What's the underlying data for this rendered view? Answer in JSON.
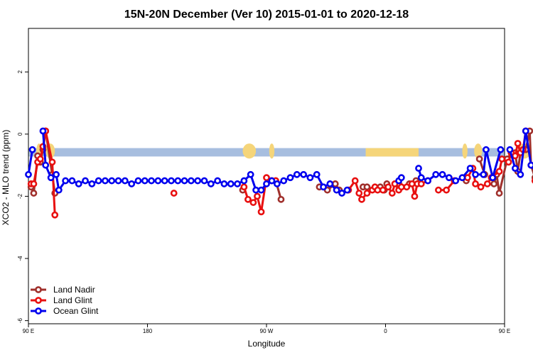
{
  "chart_data": {
    "type": "line",
    "title": "15N-20N December (Ver 10)   2015-01-01 to 2020-12-18",
    "xlabel": "Longitude",
    "ylabel": "XCO2 - MLO trend (ppm)",
    "xlim": [
      90,
      450
    ],
    "ylim": [
      -6.1,
      3.4
    ],
    "x_ticks": [
      {
        "value": 90,
        "label": "90 E"
      },
      {
        "value": 180,
        "label": "180"
      },
      {
        "value": 270,
        "label": "90 W"
      },
      {
        "value": 360,
        "label": "0"
      },
      {
        "value": 450,
        "label": "90 E"
      },
      {
        "value": 540,
        "label": "180"
      }
    ],
    "y_ticks": [
      {
        "value": -6,
        "label": "-6"
      },
      {
        "value": -4,
        "label": "-4"
      },
      {
        "value": -2,
        "label": "-2"
      },
      {
        "value": 0,
        "label": "0"
      },
      {
        "value": 2,
        "label": "2"
      }
    ],
    "background_band": {
      "ymin": -0.72,
      "ymax": -0.45,
      "ocean_color": "#a7bedf",
      "land_color": "#f5d57a"
    },
    "legend_position": "bottom-left",
    "series": [
      {
        "name": "Land Nadir",
        "color": "#a0302c",
        "points": [
          [
            92,
            -1.7
          ],
          [
            94,
            -1.9
          ],
          [
            97,
            -0.7
          ],
          [
            99,
            -0.9
          ],
          [
            101,
            -0.5
          ],
          [
            103,
            0.1
          ],
          [
            108,
            -1.3
          ],
          [
            110,
            -1.9
          ],
          [
            252,
            -1.8
          ],
          [
            277,
            -1.5
          ],
          [
            281,
            -2.1
          ],
          [
            310,
            -1.7
          ],
          [
            316,
            -1.8
          ],
          [
            322,
            -1.6
          ],
          [
            325,
            -1.8
          ],
          [
            343,
            -1.7
          ],
          [
            346,
            -1.7
          ],
          [
            356,
            -1.7
          ],
          [
            359,
            -1.8
          ],
          [
            361,
            -1.6
          ],
          [
            370,
            -1.6
          ],
          [
            372,
            -1.7
          ],
          [
            378,
            -1.6
          ],
          [
            383,
            -1.5
          ],
          [
            421,
            -1.5
          ],
          [
            431,
            -0.8
          ],
          [
            435,
            -1.3
          ],
          [
            442,
            -1.6
          ],
          [
            444,
            -1.3
          ],
          [
            446,
            -1.9
          ],
          [
            452,
            -0.8
          ],
          [
            455,
            -0.6
          ],
          [
            458,
            -0.6
          ],
          [
            460,
            -1.2
          ],
          [
            462,
            -0.6
          ],
          [
            464,
            -0.5
          ],
          [
            466,
            -0.5
          ],
          [
            469,
            0.1
          ],
          [
            470,
            -1.0
          ],
          [
            473,
            -1.4
          ],
          [
            476,
            -1.6
          ],
          [
            477,
            -1.9
          ]
        ]
      },
      {
        "name": "Land Glint",
        "color": "#e81010",
        "points": [
          [
            92,
            -1.6
          ],
          [
            94,
            -1.6
          ],
          [
            97,
            -0.9
          ],
          [
            99,
            -0.8
          ],
          [
            101,
            -0.4
          ],
          [
            103,
            0.1
          ],
          [
            108,
            -0.9
          ],
          [
            110,
            -2.6
          ],
          [
            200,
            -1.9
          ],
          [
            253,
            -1.7
          ],
          [
            256,
            -2.1
          ],
          [
            260,
            -2.2
          ],
          [
            263,
            -2.0
          ],
          [
            266,
            -2.5
          ],
          [
            270,
            -1.4
          ],
          [
            274,
            -1.5
          ],
          [
            277,
            -1.5
          ],
          [
            332,
            -1.8
          ],
          [
            337,
            -1.5
          ],
          [
            340,
            -1.9
          ],
          [
            342,
            -2.1
          ],
          [
            346,
            -1.9
          ],
          [
            350,
            -1.8
          ],
          [
            352,
            -1.7
          ],
          [
            354,
            -1.8
          ],
          [
            358,
            -1.8
          ],
          [
            362,
            -1.7
          ],
          [
            365,
            -1.9
          ],
          [
            367,
            -1.6
          ],
          [
            370,
            -1.8
          ],
          [
            372,
            -1.7
          ],
          [
            376,
            -1.7
          ],
          [
            380,
            -1.6
          ],
          [
            382,
            -2.0
          ],
          [
            384,
            -1.6
          ],
          [
            387,
            -1.6
          ],
          [
            392,
            -1.5
          ],
          [
            400,
            -1.8
          ],
          [
            406,
            -1.8
          ],
          [
            412,
            -1.5
          ],
          [
            422,
            -1.4
          ],
          [
            426,
            -1.1
          ],
          [
            428,
            -1.6
          ],
          [
            432,
            -1.7
          ],
          [
            437,
            -1.6
          ],
          [
            440,
            -1.4
          ],
          [
            446,
            -1.2
          ],
          [
            448,
            -0.8
          ],
          [
            453,
            -0.9
          ],
          [
            455,
            -0.6
          ],
          [
            458,
            -0.7
          ],
          [
            460,
            -0.3
          ],
          [
            462,
            -0.6
          ],
          [
            464,
            -0.5
          ],
          [
            466,
            0.1
          ],
          [
            473,
            -1.5
          ],
          [
            475,
            -2.6
          ]
        ]
      },
      {
        "name": "Ocean Glint",
        "color": "#0000ee",
        "points": [
          [
            90,
            -1.3
          ],
          [
            93,
            -0.5
          ],
          [
            101,
            0.1
          ],
          [
            103,
            -1.0
          ],
          [
            107,
            -1.4
          ],
          [
            111,
            -1.3
          ],
          [
            113,
            -1.8
          ],
          [
            118,
            -1.5
          ],
          [
            123,
            -1.5
          ],
          [
            128,
            -1.6
          ],
          [
            133,
            -1.5
          ],
          [
            138,
            -1.6
          ],
          [
            143,
            -1.5
          ],
          [
            148,
            -1.5
          ],
          [
            153,
            -1.5
          ],
          [
            158,
            -1.5
          ],
          [
            163,
            -1.5
          ],
          [
            168,
            -1.6
          ],
          [
            173,
            -1.5
          ],
          [
            178,
            -1.5
          ],
          [
            183,
            -1.5
          ],
          [
            188,
            -1.5
          ],
          [
            193,
            -1.5
          ],
          [
            198,
            -1.5
          ],
          [
            203,
            -1.5
          ],
          [
            208,
            -1.5
          ],
          [
            213,
            -1.5
          ],
          [
            218,
            -1.5
          ],
          [
            223,
            -1.5
          ],
          [
            228,
            -1.6
          ],
          [
            233,
            -1.5
          ],
          [
            238,
            -1.6
          ],
          [
            243,
            -1.6
          ],
          [
            248,
            -1.6
          ],
          [
            253,
            -1.5
          ],
          [
            258,
            -1.3
          ],
          [
            262,
            -1.8
          ],
          [
            266,
            -1.8
          ],
          [
            270,
            -1.6
          ],
          [
            274,
            -1.5
          ],
          [
            278,
            -1.6
          ],
          [
            283,
            -1.5
          ],
          [
            288,
            -1.4
          ],
          [
            293,
            -1.3
          ],
          [
            298,
            -1.3
          ],
          [
            303,
            -1.4
          ],
          [
            308,
            -1.3
          ],
          [
            313,
            -1.7
          ],
          [
            318,
            -1.6
          ],
          [
            323,
            -1.8
          ],
          [
            327,
            -1.9
          ],
          [
            331,
            -1.8
          ],
          [
            370,
            -1.5
          ],
          [
            372,
            -1.4
          ],
          [
            385,
            -1.1
          ],
          [
            387,
            -1.4
          ],
          [
            392,
            -1.5
          ],
          [
            398,
            -1.3
          ],
          [
            403,
            -1.3
          ],
          [
            408,
            -1.4
          ],
          [
            413,
            -1.5
          ],
          [
            418,
            -1.4
          ],
          [
            424,
            -1.1
          ],
          [
            428,
            -1.3
          ],
          [
            434,
            -1.3
          ],
          [
            436,
            -0.5
          ],
          [
            441,
            -1.4
          ],
          [
            447,
            -0.5
          ],
          [
            454,
            -0.5
          ],
          [
            458,
            -1.1
          ],
          [
            462,
            -1.3
          ],
          [
            466,
            0.1
          ],
          [
            470,
            -1.0
          ],
          [
            475,
            -1.3
          ]
        ]
      }
    ]
  }
}
